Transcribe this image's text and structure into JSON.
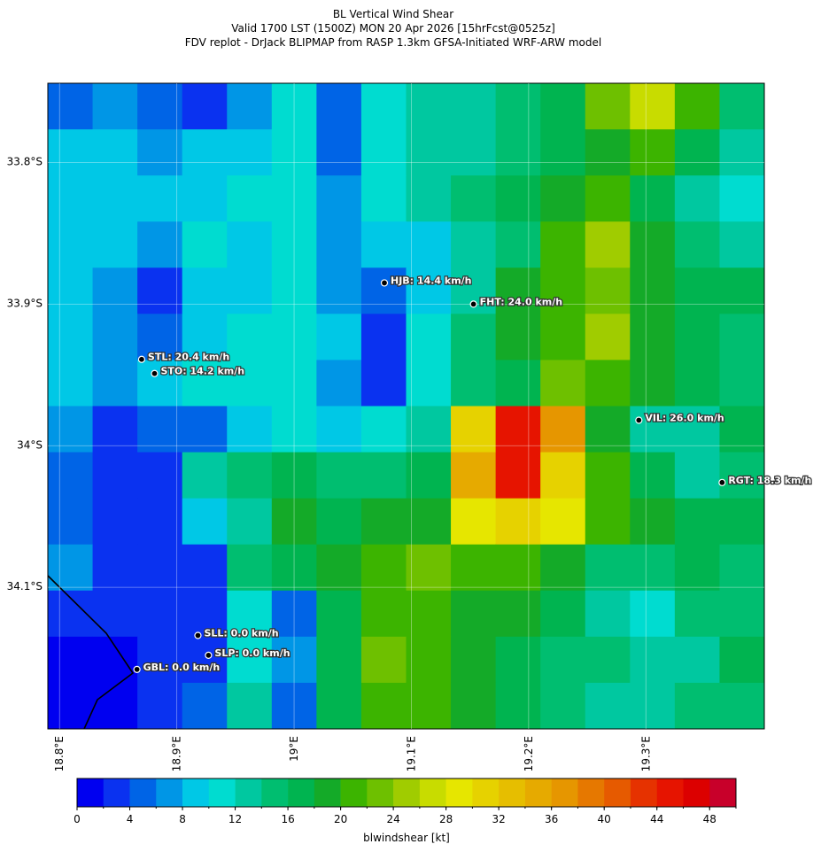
{
  "chart_data": {
    "type": "heatmap",
    "title": [
      "BL Vertical Wind Shear",
      "Valid 1700 LST (1500Z) MON 20 Apr 2026 [15hrFcst@0525z]",
      "FDV replot - DrJack BLIPMAP from RASP 1.3km GFSA-Initiated WRF-ARW model"
    ],
    "xlim": [
      18.79,
      19.401
    ],
    "ylim": [
      34.2,
      33.744
    ],
    "xticks": [
      {
        "value": 18.8,
        "label": "18.8°E"
      },
      {
        "value": 18.9,
        "label": "18.9°E"
      },
      {
        "value": 19.0,
        "label": "19°E"
      },
      {
        "value": 19.1,
        "label": "19.1°E"
      },
      {
        "value": 19.2,
        "label": "19.2°E"
      },
      {
        "value": 19.3,
        "label": "19.3°E"
      }
    ],
    "yticks": [
      {
        "value": 33.8,
        "label": "33.8°S"
      },
      {
        "value": 33.9,
        "label": "33.9°S"
      },
      {
        "value": 34.0,
        "label": "34°S"
      },
      {
        "value": 34.1,
        "label": "34.1°S"
      }
    ],
    "grid": [
      [
        4,
        6,
        4,
        2,
        6,
        10,
        4,
        10,
        12,
        12,
        14,
        16,
        22,
        26,
        20,
        14
      ],
      [
        8,
        8,
        6,
        8,
        8,
        10,
        4,
        10,
        12,
        12,
        14,
        16,
        18,
        20,
        16,
        12
      ],
      [
        8,
        8,
        8,
        8,
        10,
        10,
        6,
        10,
        12,
        14,
        16,
        18,
        20,
        16,
        12,
        10
      ],
      [
        8,
        8,
        6,
        10,
        8,
        10,
        6,
        8,
        8,
        12,
        14,
        20,
        24,
        18,
        14,
        12
      ],
      [
        8,
        6,
        2,
        8,
        8,
        10,
        6,
        4,
        8,
        12,
        18,
        20,
        22,
        18,
        16,
        16
      ],
      [
        8,
        6,
        4,
        8,
        10,
        10,
        8,
        2,
        10,
        14,
        18,
        20,
        24,
        18,
        16,
        14
      ],
      [
        8,
        6,
        8,
        10,
        10,
        10,
        6,
        2,
        10,
        14,
        16,
        22,
        20,
        18,
        16,
        14
      ],
      [
        6,
        2,
        4,
        4,
        8,
        10,
        8,
        10,
        12,
        30,
        44,
        36,
        18,
        12,
        12,
        16
      ],
      [
        4,
        2,
        2,
        12,
        14,
        16,
        14,
        14,
        16,
        34,
        44,
        30,
        20,
        16,
        12,
        14
      ],
      [
        4,
        2,
        2,
        8,
        12,
        18,
        16,
        18,
        18,
        28,
        30,
        28,
        20,
        18,
        16,
        16
      ],
      [
        6,
        2,
        2,
        2,
        14,
        16,
        18,
        20,
        22,
        20,
        20,
        18,
        14,
        14,
        16,
        14
      ],
      [
        2,
        2,
        2,
        2,
        10,
        4,
        16,
        20,
        20,
        18,
        18,
        16,
        12,
        10,
        14,
        14
      ],
      [
        0,
        0,
        2,
        2,
        10,
        6,
        16,
        22,
        20,
        18,
        16,
        14,
        14,
        12,
        12,
        16
      ],
      [
        0,
        0,
        2,
        4,
        12,
        4,
        16,
        20,
        20,
        18,
        16,
        14,
        12,
        12,
        14,
        14
      ]
    ],
    "stations": [
      {
        "lon": 19.077,
        "lat": 33.885,
        "label": "HJB: 14.4 km/h"
      },
      {
        "lon": 19.153,
        "lat": 33.9,
        "label": "FHT: 24.0 km/h"
      },
      {
        "lon": 18.87,
        "lat": 33.939,
        "label": "STL: 20.4 km/h"
      },
      {
        "lon": 18.881,
        "lat": 33.949,
        "label": "STO: 14.2 km/h"
      },
      {
        "lon": 19.294,
        "lat": 33.982,
        "label": "VIL: 26.0 km/h"
      },
      {
        "lon": 19.365,
        "lat": 34.026,
        "label": "RGT: 18.3 km/h"
      },
      {
        "lon": 18.918,
        "lat": 34.134,
        "label": "SLL: 0.0 km/h"
      },
      {
        "lon": 18.927,
        "lat": 34.148,
        "label": "SLP: 0.0 km/h"
      },
      {
        "lon": 18.866,
        "lat": 34.158,
        "label": "GBL: 0.0 km/h"
      }
    ],
    "colorbar": {
      "label": "blwindshear [kt]",
      "lim": [
        0,
        50
      ],
      "ticks": [
        0,
        4,
        8,
        12,
        16,
        20,
        24,
        28,
        32,
        36,
        40,
        44,
        48
      ],
      "levels": [
        0,
        2,
        4,
        6,
        8,
        10,
        12,
        14,
        16,
        18,
        20,
        22,
        24,
        26,
        28,
        30,
        32,
        34,
        36,
        38,
        40,
        42,
        44,
        46,
        48,
        50
      ],
      "colors": [
        "#0000f0",
        "#0a32f0",
        "#0064e6",
        "#0096e6",
        "#00c8e6",
        "#00dcd0",
        "#00c8a0",
        "#00be70",
        "#00b450",
        "#14aa28",
        "#3cb400",
        "#6ec000",
        "#a0cc00",
        "#c8dc00",
        "#e6e600",
        "#e6d200",
        "#e6be00",
        "#e6aa00",
        "#e69600",
        "#e67800",
        "#e65a00",
        "#e63200",
        "#e61400",
        "#dc0000",
        "#c8002a"
      ]
    }
  }
}
